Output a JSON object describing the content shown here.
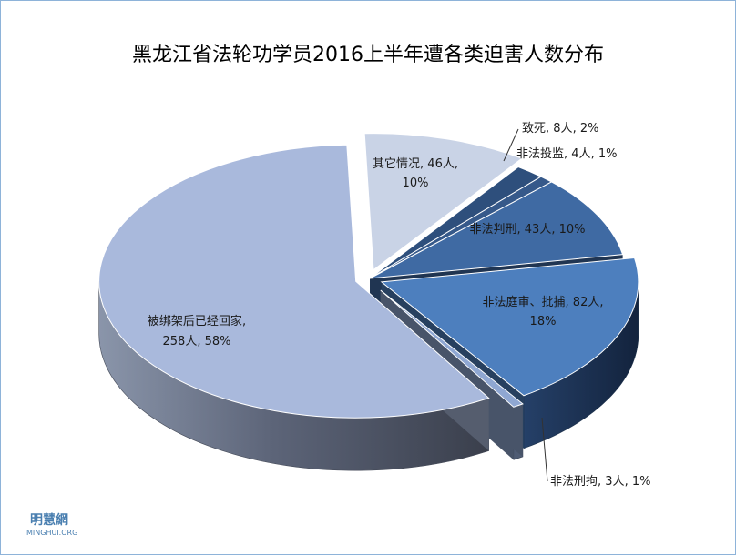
{
  "chart_data": {
    "type": "pie",
    "title": "黑龙江省法轮功学员2016上半年遭各类迫害人数分布",
    "slices": [
      {
        "name": "其它情况",
        "count_label": "46人",
        "percent_label": "10%",
        "value": 46,
        "color": "#c9d3e6"
      },
      {
        "name": "致死",
        "count_label": "8人",
        "percent_label": "2%",
        "value": 8,
        "color": "#2e4f7c"
      },
      {
        "name": "非法投监",
        "count_label": "4人",
        "percent_label": "1%",
        "value": 4,
        "color": "#36598a"
      },
      {
        "name": "非法判刑",
        "count_label": "43人",
        "percent_label": "10%",
        "value": 43,
        "color": "#3f6aa3"
      },
      {
        "name": "非法庭审、批捕",
        "count_label": "82人",
        "percent_label": "18%",
        "value": 82,
        "color": "#4d7fbe"
      },
      {
        "name": "非法刑拘",
        "count_label": "3人",
        "percent_label": "1%",
        "value": 3,
        "color": "#8fa7d2"
      },
      {
        "name": "被绑架后已经回家",
        "count_label": "258人",
        "percent_label": "58%",
        "value": 258,
        "color": "#a9b9dc"
      }
    ],
    "legend": "none",
    "style": "3d-exploded"
  },
  "watermark": {
    "line1": "明慧網",
    "line2": "MINGHUI.ORG"
  }
}
